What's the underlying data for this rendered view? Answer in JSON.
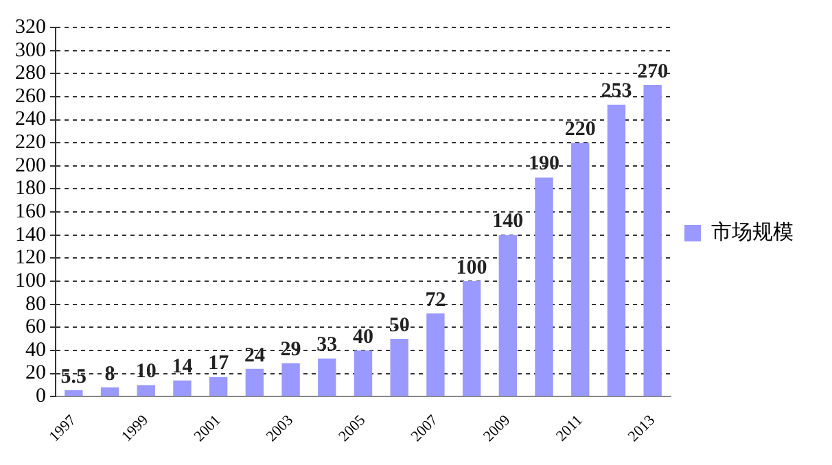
{
  "chart_data": {
    "type": "bar",
    "categories": [
      "1997",
      null,
      "1999",
      null,
      "2001",
      null,
      "2003",
      null,
      "2005",
      null,
      "2007",
      null,
      "2009",
      null,
      "2011",
      null,
      "2013"
    ],
    "series": [
      {
        "name": "市场规模",
        "color": "#9999ff",
        "values": [
          5.5,
          8,
          10,
          14,
          17,
          24,
          29,
          33,
          40,
          50,
          72,
          100,
          140,
          190,
          220,
          253,
          270
        ]
      }
    ],
    "ylim": [
      0,
      320
    ],
    "yticks": [
      0,
      20,
      40,
      60,
      80,
      100,
      120,
      140,
      160,
      180,
      200,
      220,
      240,
      260,
      280,
      300,
      320
    ],
    "grid": "y",
    "legend": "right",
    "data_labels": true
  }
}
